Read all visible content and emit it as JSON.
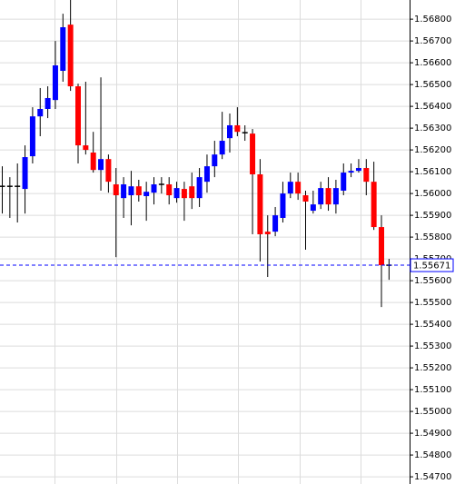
{
  "chart_data": {
    "type": "candlestick",
    "open": [
      1.56033,
      1.56033,
      1.56033,
      1.56021,
      1.56171,
      1.56354,
      1.56388,
      1.56429,
      1.56563,
      1.56775,
      1.56492,
      1.56221,
      1.56188,
      1.56108,
      1.56158,
      1.56042,
      1.55979,
      1.55992,
      1.56033,
      1.55988,
      1.56004,
      1.56042,
      1.56042,
      1.55979,
      1.56021,
      1.56033,
      1.55979,
      1.56054,
      1.56125,
      1.56179,
      1.56254,
      1.56313,
      1.56279,
      1.56275,
      1.56088,
      1.55825,
      1.55825,
      1.55888,
      1.56,
      1.56054,
      1.55992,
      1.55921,
      1.5595,
      1.56025,
      1.5595,
      1.56013,
      1.56096,
      1.56104,
      1.56117,
      1.56054,
      1.55846,
      1.55671
    ],
    "high": [
      1.56125,
      1.56075,
      1.56138,
      1.56221,
      1.56396,
      1.56484,
      1.56492,
      1.567,
      1.56825,
      1.56888,
      1.56504,
      1.56513,
      1.56283,
      1.56533,
      1.56179,
      1.56117,
      1.56075,
      1.56104,
      1.56063,
      1.56054,
      1.56075,
      1.56075,
      1.56075,
      1.56054,
      1.56054,
      1.56096,
      1.56117,
      1.56179,
      1.56242,
      1.56375,
      1.56367,
      1.56396,
      1.56313,
      1.56296,
      1.56158,
      1.559,
      1.55938,
      1.56054,
      1.56096,
      1.56096,
      1.56013,
      1.56013,
      1.56054,
      1.56075,
      1.56063,
      1.56138,
      1.56138,
      1.56158,
      1.56158,
      1.56146,
      1.559,
      1.557
    ],
    "low": [
      1.55908,
      1.55888,
      1.55867,
      1.55908,
      1.56138,
      1.56263,
      1.56346,
      1.56388,
      1.56513,
      1.56471,
      1.56138,
      1.56179,
      1.56096,
      1.56013,
      1.56004,
      1.55708,
      1.55888,
      1.55854,
      1.55963,
      1.55875,
      1.5595,
      1.56,
      1.5595,
      1.55958,
      1.55875,
      1.55929,
      1.55938,
      1.56004,
      1.56075,
      1.56158,
      1.56188,
      1.56263,
      1.56242,
      1.55813,
      1.55688,
      1.55617,
      1.55804,
      1.55867,
      1.55979,
      1.55971,
      1.55742,
      1.55908,
      1.55929,
      1.55921,
      1.55908,
      1.55992,
      1.56075,
      1.56096,
      1.55992,
      1.55833,
      1.55479,
      1.55604
    ],
    "close": [
      1.56033,
      1.56033,
      1.56033,
      1.56167,
      1.56354,
      1.56388,
      1.56438,
      1.56588,
      1.56763,
      1.56492,
      1.56221,
      1.562,
      1.56108,
      1.56158,
      1.56054,
      1.55992,
      1.56042,
      1.56033,
      1.55992,
      1.56008,
      1.56042,
      1.56042,
      1.55992,
      1.56025,
      1.55979,
      1.55979,
      1.56075,
      1.56125,
      1.56179,
      1.56242,
      1.56313,
      1.56283,
      1.56279,
      1.56088,
      1.55813,
      1.55813,
      1.559,
      1.56,
      1.56054,
      1.56,
      1.55963,
      1.5595,
      1.56025,
      1.5595,
      1.56025,
      1.56096,
      1.56104,
      1.56117,
      1.56054,
      1.55846,
      1.55671,
      1.55671
    ],
    "up_color": "#0000ff",
    "down_color": "#ff0000",
    "doji_color": "#000000",
    "last_price": 1.55671,
    "last_price_color": "#0000ff",
    "ylim": [
      1.54667,
      1.56888
    ],
    "yticks": [
      {
        "value": 1.568,
        "label": "1.56800"
      },
      {
        "value": 1.567,
        "label": "1.56700"
      },
      {
        "value": 1.566,
        "label": "1.56600"
      },
      {
        "value": 1.565,
        "label": "1.56500"
      },
      {
        "value": 1.564,
        "label": "1.56400"
      },
      {
        "value": 1.563,
        "label": "1.56300"
      },
      {
        "value": 1.562,
        "label": "1.56200"
      },
      {
        "value": 1.561,
        "label": "1.56100"
      },
      {
        "value": 1.56,
        "label": "1.56000"
      },
      {
        "value": 1.559,
        "label": "1.55900"
      },
      {
        "value": 1.558,
        "label": "1.55800"
      },
      {
        "value": 1.557,
        "label": "1.55700"
      },
      {
        "value": 1.556,
        "label": "1.55600"
      },
      {
        "value": 1.555,
        "label": "1.55500"
      },
      {
        "value": 1.554,
        "label": "1.55400"
      },
      {
        "value": 1.553,
        "label": "1.55300"
      },
      {
        "value": 1.552,
        "label": "1.55200"
      },
      {
        "value": 1.551,
        "label": "1.55100"
      },
      {
        "value": 1.55,
        "label": "1.55000"
      },
      {
        "value": 1.549,
        "label": "1.54900"
      },
      {
        "value": 1.548,
        "label": "1.54800"
      },
      {
        "value": 1.547,
        "label": "1.54700"
      }
    ],
    "grid": true
  }
}
